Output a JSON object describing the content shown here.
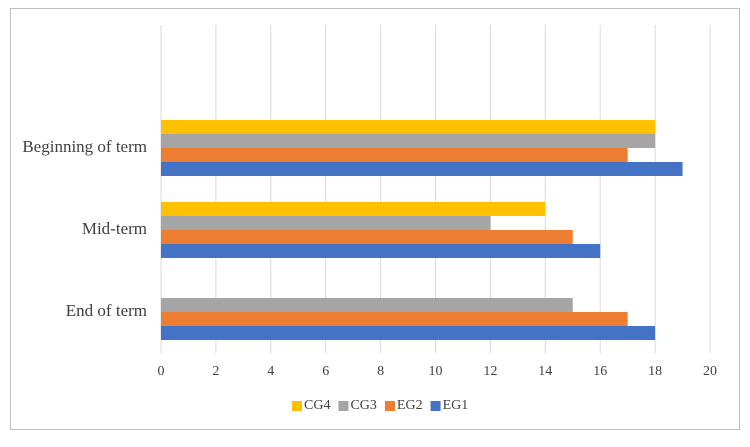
{
  "chart_data": {
    "type": "bar",
    "orientation": "horizontal",
    "categories": [
      "End of term",
      "Mid-term",
      "Beginning of term"
    ],
    "series": [
      {
        "name": "EG1",
        "color": "#4472c4",
        "values": [
          18,
          16,
          19
        ]
      },
      {
        "name": "EG2",
        "color": "#ed7d31",
        "values": [
          17,
          15,
          17
        ]
      },
      {
        "name": "CG3",
        "color": "#a5a5a5",
        "values": [
          15,
          12,
          18
        ]
      },
      {
        "name": "CG4",
        "color": "#ffc000",
        "values": [
          null,
          14,
          18
        ]
      }
    ],
    "xlim": [
      0,
      20
    ],
    "xticks": [
      0,
      2,
      4,
      6,
      8,
      10,
      12,
      14,
      16,
      18,
      20
    ],
    "grid": true,
    "legend": "bottom"
  }
}
